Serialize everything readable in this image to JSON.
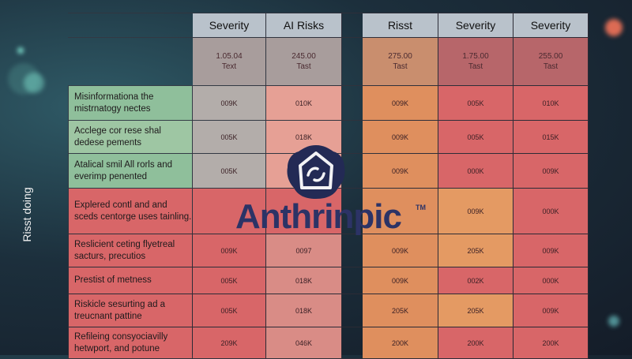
{
  "side_label": "Risst doing",
  "brand": {
    "name": "Anthrinpic",
    "tm": "TM"
  },
  "colors": {
    "low": "#8fbf9b",
    "mid": "#df8f5e",
    "high": "#d86668",
    "header": "#b9c2cb",
    "brand": "#2c3366"
  },
  "chart_data": {
    "type": "table",
    "columns": [
      "Severity",
      "AI Risks",
      "Risst",
      "Severity",
      "Severity"
    ],
    "header_subrows": [
      [
        "1.05.04",
        "Text"
      ],
      [
        "245.00",
        "Tast"
      ],
      [
        "275.00",
        "Tast"
      ],
      [
        "1.75.00",
        "Tast"
      ],
      [
        "255.00",
        "Tast"
      ]
    ],
    "rows": [
      {
        "label": "Misinformationa the mistrnatogy nectes",
        "values": [
          "009K",
          "010K",
          "009K",
          "005K",
          "010K"
        ]
      },
      {
        "label": "Acclege cor rese shal dedese pements",
        "values": [
          "005K",
          "018K",
          "009K",
          "005K",
          "015K"
        ]
      },
      {
        "label": "Atalical smil All rorls and everimp penented",
        "values": [
          "005K",
          "",
          "009K",
          "000K",
          "009K"
        ]
      },
      {
        "label": "Explered contl and and sceds centorge uses tainling.",
        "values": [
          "",
          "",
          "",
          "009K",
          "000K"
        ]
      },
      {
        "label": "Reslicient ceting flyetreal sacturs, precutios",
        "values": [
          "009K",
          "0097",
          "009K",
          "205K",
          "009K"
        ]
      },
      {
        "label": "Prestist of metness",
        "values": [
          "005K",
          "018K",
          "009K",
          "002K",
          "000K"
        ]
      },
      {
        "label": "Riskicle sesurting ad a treucnant pattine",
        "values": [
          "005K",
          "018K",
          "205K",
          "205K",
          "009K"
        ]
      },
      {
        "label": "Refileing consyociavilly hetwport, and potune",
        "values": [
          "209K",
          "046K",
          "200K",
          "200K",
          "200K"
        ]
      }
    ]
  }
}
